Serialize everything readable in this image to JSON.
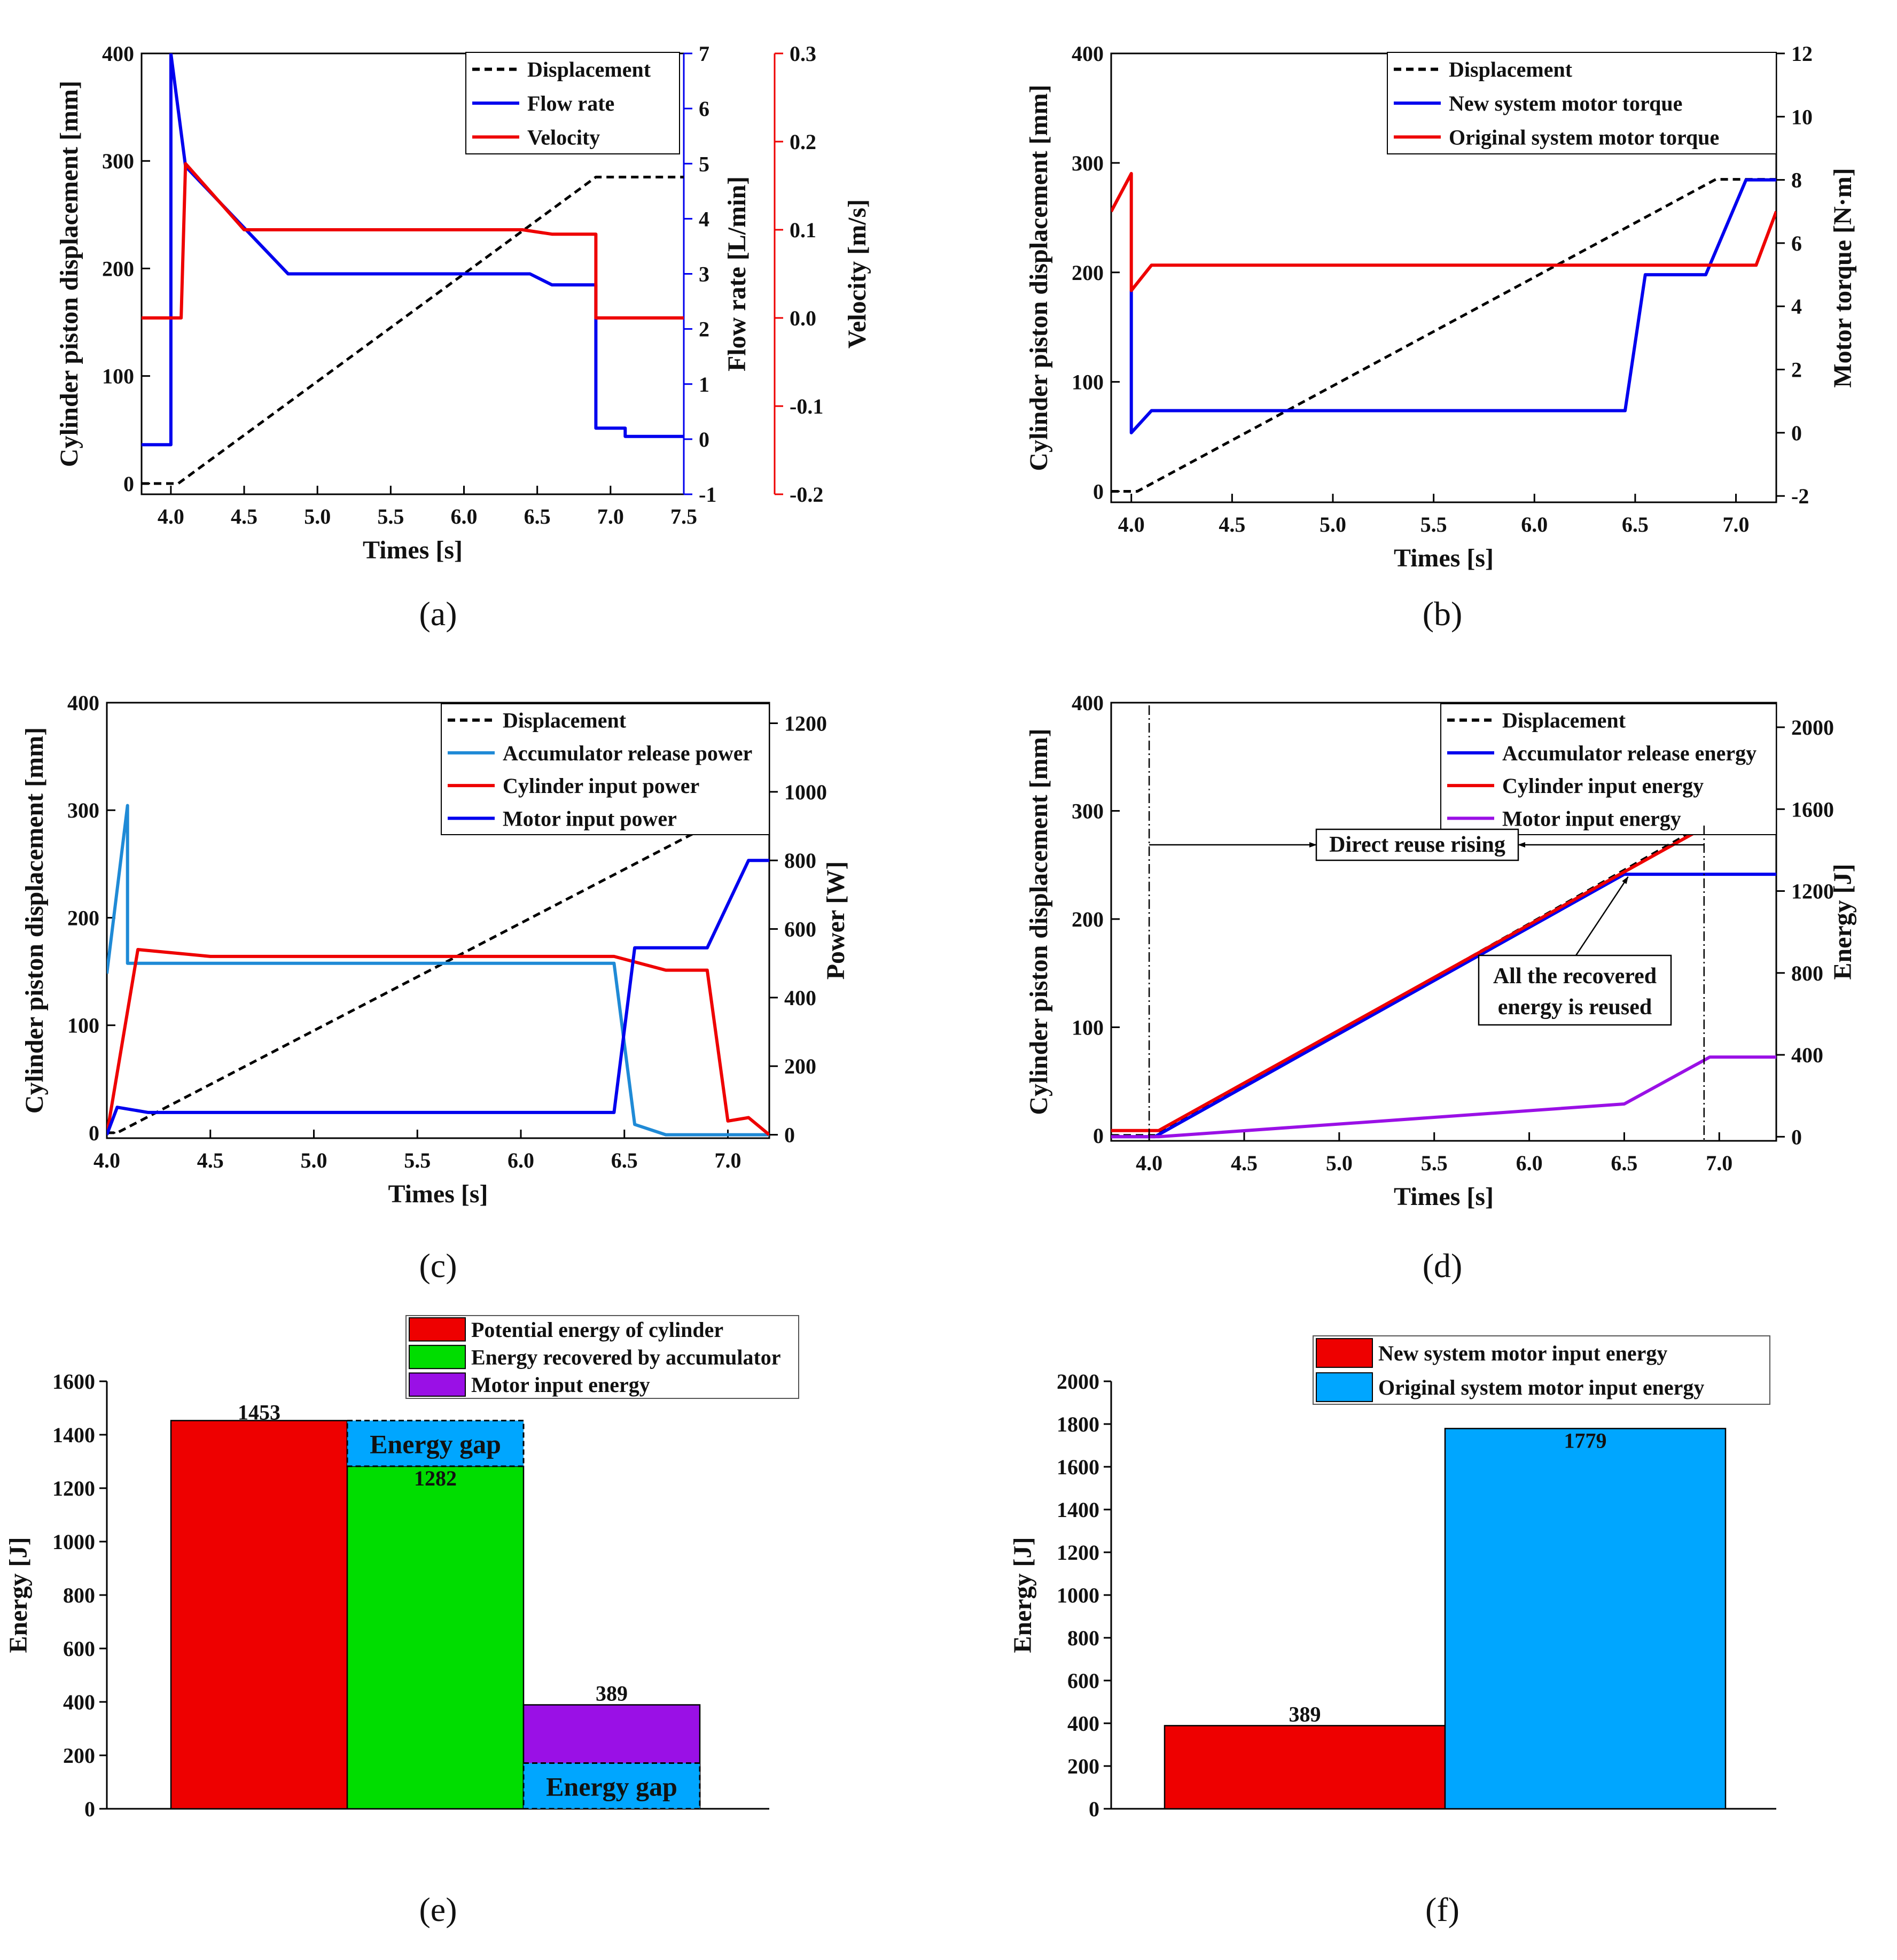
{
  "colors": {
    "black": "#000000",
    "blue": "#0000ee",
    "red": "#ee0000",
    "lightblue": "#1f8ad6",
    "purple": "#9a10e6",
    "green": "#00dd00",
    "cyan": "#00a6ff"
  },
  "chart_data": [
    {
      "panel": "(a)",
      "type": "line",
      "xlabel": "Times [s]",
      "xlim": [
        3.8,
        7.5
      ],
      "xticks": [
        "4.0",
        "4.5",
        "5.0",
        "5.5",
        "6.0",
        "6.5",
        "7.0",
        "7.5"
      ],
      "ylabel": "Cylinder piston displacement [mm]",
      "ylim": [
        -10,
        400
      ],
      "yticks": [
        "0",
        "100",
        "200",
        "300",
        "400"
      ],
      "y2label": "Flow rate [L/min]",
      "y2lim": [
        -1,
        7
      ],
      "y2ticks": [
        "-1",
        "0",
        "1",
        "2",
        "3",
        "4",
        "5",
        "6",
        "7"
      ],
      "y3label": "Velocity [m/s]",
      "y3lim": [
        -0.2,
        0.3
      ],
      "y3ticks": [
        "-0.2",
        "-0.1",
        "0.0",
        "0.1",
        "0.2",
        "0.3"
      ],
      "legend": [
        "Displacement",
        "Flow rate",
        "Velocity"
      ],
      "series": [
        {
          "name": "Displacement",
          "axis": "y",
          "x": [
            3.8,
            4.05,
            6.9,
            7.5
          ],
          "y": [
            0,
            0,
            285,
            285
          ]
        },
        {
          "name": "Flow rate",
          "axis": "y2",
          "x": [
            3.8,
            4.0,
            4.0,
            4.1,
            4.8,
            6.45,
            6.6,
            6.9,
            6.9,
            7.1,
            7.1,
            7.5
          ],
          "y": [
            -0.1,
            -0.1,
            7,
            4.95,
            3.0,
            3.0,
            2.8,
            2.8,
            0.2,
            0.2,
            0.05,
            0.05
          ]
        },
        {
          "name": "Velocity",
          "axis": "y3",
          "x": [
            3.8,
            4.07,
            4.1,
            4.5,
            6.4,
            6.6,
            6.9,
            6.9,
            7.5
          ],
          "y": [
            0,
            0,
            0.175,
            0.1,
            0.1,
            0.095,
            0.095,
            0,
            0
          ]
        }
      ]
    },
    {
      "panel": "(b)",
      "type": "line",
      "xlabel": "Times [s]",
      "xlim": [
        3.9,
        7.2
      ],
      "xticks": [
        "4.0",
        "4.5",
        "5.0",
        "5.5",
        "6.0",
        "6.5",
        "7.0"
      ],
      "ylabel": "Cylinder piston displacement [mm]",
      "ylim": [
        -10,
        400
      ],
      "yticks": [
        "0",
        "100",
        "200",
        "300",
        "400"
      ],
      "y2label": "Motor torque [N·m]",
      "y2lim": [
        -2.2,
        12
      ],
      "y2ticks": [
        "-2",
        "0",
        "2",
        "4",
        "6",
        "8",
        "10",
        "12"
      ],
      "legend": [
        "Displacement",
        "New system motor torque",
        "Original system motor torque"
      ],
      "series": [
        {
          "name": "Displacement",
          "axis": "y",
          "x": [
            3.9,
            4.03,
            6.9,
            7.2
          ],
          "y": [
            0,
            0,
            285,
            285
          ]
        },
        {
          "name": "New system motor torque",
          "axis": "y2",
          "x": [
            4.0,
            4.0,
            4.1,
            6.45,
            6.55,
            6.85,
            7.05,
            7.2
          ],
          "y": [
            4.5,
            0,
            0.7,
            0.7,
            5.0,
            5.0,
            8.0,
            8.0
          ]
        },
        {
          "name": "Original system motor torque",
          "axis": "y2",
          "x": [
            3.9,
            4.0,
            4.0,
            4.1,
            7.1,
            7.2
          ],
          "y": [
            7.0,
            8.2,
            4.5,
            5.3,
            5.3,
            7.0
          ]
        }
      ]
    },
    {
      "panel": "(c)",
      "type": "line",
      "xlabel": "Times [s]",
      "xlim": [
        4.0,
        7.2
      ],
      "xticks": [
        "4.0",
        "4.5",
        "5.0",
        "5.5",
        "6.0",
        "6.5",
        "7.0"
      ],
      "ylabel": "Cylinder piston displacement [mm]",
      "ylim": [
        -5,
        400
      ],
      "yticks": [
        "0",
        "100",
        "200",
        "300",
        "400"
      ],
      "y2label": "Power [W]",
      "y2lim": [
        -10,
        1260
      ],
      "y2ticks": [
        "0",
        "200",
        "400",
        "600",
        "800",
        "1000",
        "1200"
      ],
      "legend": [
        "Displacement",
        "Accumulator release power",
        "Cylinder input power",
        "Motor input power"
      ],
      "series": [
        {
          "name": "Displacement",
          "axis": "y",
          "x": [
            4.0,
            4.05,
            6.9,
            7.2
          ],
          "y": [
            0,
            0,
            285,
            285
          ]
        },
        {
          "name": "Accumulator release power",
          "axis": "y2",
          "x": [
            4.0,
            4.1,
            4.1,
            6.45,
            6.55,
            6.7,
            7.2
          ],
          "y": [
            470,
            960,
            500,
            500,
            30,
            0,
            0
          ]
        },
        {
          "name": "Cylinder input power",
          "axis": "y2",
          "x": [
            4.0,
            4.15,
            4.5,
            6.45,
            6.7,
            6.9,
            7.0,
            7.1,
            7.2
          ],
          "y": [
            0,
            540,
            520,
            520,
            480,
            480,
            40,
            50,
            0
          ]
        },
        {
          "name": "Motor input power",
          "axis": "y2",
          "x": [
            4.0,
            4.05,
            4.2,
            6.45,
            6.55,
            6.9,
            7.1,
            7.2
          ],
          "y": [
            0,
            80,
            65,
            65,
            545,
            545,
            800,
            800
          ]
        }
      ]
    },
    {
      "panel": "(d)",
      "type": "line",
      "xlabel": "Times [s]",
      "xlim": [
        3.8,
        7.3
      ],
      "xticks": [
        "4.0",
        "4.5",
        "5.0",
        "5.5",
        "6.0",
        "6.5",
        "7.0"
      ],
      "ylabel": "Cylinder piston displacement [mm]",
      "ylim": [
        -5,
        400
      ],
      "yticks": [
        "0",
        "100",
        "200",
        "300",
        "400"
      ],
      "y2label": "Energy [J]",
      "y2lim": [
        -20,
        2120
      ],
      "y2ticks": [
        "0",
        "400",
        "800",
        "1200",
        "1600",
        "2000"
      ],
      "legend": [
        "Displacement",
        "Accumulator release energy",
        "Cylinder input energy",
        "Motor input energy"
      ],
      "annotations": [
        "Direct reuse rising",
        "All the recovered energy is reused"
      ],
      "series": [
        {
          "name": "Displacement",
          "axis": "y",
          "x": [
            3.8,
            4.03,
            6.9,
            7.3
          ],
          "y": [
            0,
            0,
            285,
            285
          ]
        },
        {
          "name": "Accumulator release energy",
          "axis": "y2",
          "x": [
            3.8,
            4.03,
            6.5,
            7.3
          ],
          "y": [
            0,
            0,
            1282,
            1282
          ]
        },
        {
          "name": "Cylinder input energy",
          "axis": "y2",
          "x": [
            3.8,
            4.05,
            6.9,
            7.3
          ],
          "y": [
            30,
            30,
            1500,
            1500
          ]
        },
        {
          "name": "Motor input energy",
          "axis": "y2",
          "x": [
            3.8,
            4.05,
            6.5,
            6.95,
            7.3
          ],
          "y": [
            0,
            0,
            160,
            389,
            389
          ]
        }
      ]
    },
    {
      "panel": "(e)",
      "type": "bar",
      "ylabel": "Energy [J]",
      "ylim": [
        0,
        1600
      ],
      "yticks": [
        "0",
        "200",
        "400",
        "600",
        "800",
        "1000",
        "1200",
        "1400",
        "1600"
      ],
      "legend": [
        "Potential energy of cylinder",
        "Energy recovered by accumulator",
        "Motor input energy"
      ],
      "categories": [
        "Potential energy of cylinder",
        "Energy recovered by accumulator",
        "Motor input energy"
      ],
      "values": [
        1453,
        1282,
        389
      ],
      "value_labels": [
        "1453",
        "1282",
        "389"
      ],
      "gaps": [
        {
          "bar": 1,
          "from": 1282,
          "to": 1453,
          "label": "Energy gap"
        },
        {
          "bar": 2,
          "from": 0,
          "to": 171,
          "label": "Energy gap"
        }
      ]
    },
    {
      "panel": "(f)",
      "type": "bar",
      "ylabel": "Energy [J]",
      "ylim": [
        0,
        2000
      ],
      "yticks": [
        "0",
        "200",
        "400",
        "600",
        "800",
        "1000",
        "1200",
        "1400",
        "1600",
        "1800",
        "2000"
      ],
      "legend": [
        "New system motor input energy",
        "Original system motor input energy"
      ],
      "categories": [
        "New system motor input energy",
        "Original system motor input energy"
      ],
      "values": [
        389,
        1779
      ],
      "value_labels": [
        "389",
        "1779"
      ]
    }
  ]
}
